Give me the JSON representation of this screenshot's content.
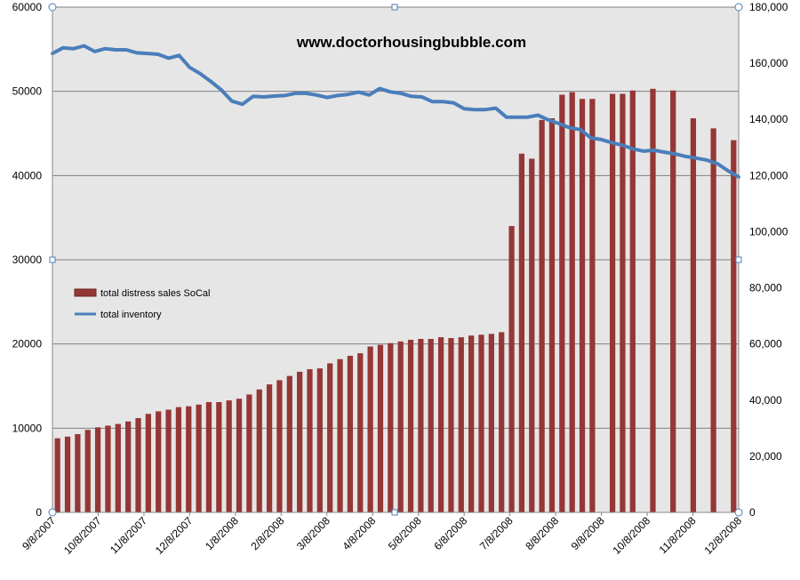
{
  "chart_data": {
    "type": "bar+line",
    "title": "www.doctorhousingbubble.com",
    "background_color": "#e6e6e6",
    "grid": true,
    "legend_position": "left-middle",
    "left_axis": {
      "ylim": [
        0,
        60000
      ],
      "ticks": [
        0,
        10000,
        20000,
        30000,
        40000,
        50000,
        60000
      ],
      "tick_labels": [
        "0",
        "10000",
        "20000",
        "30000",
        "40000",
        "50000",
        "60000"
      ]
    },
    "right_axis": {
      "ylim": [
        0,
        180000
      ],
      "ticks": [
        0,
        20000,
        40000,
        60000,
        80000,
        100000,
        120000,
        140000,
        160000,
        180000
      ],
      "tick_labels": [
        "0",
        "20,000",
        "40,000",
        "60,000",
        "80,000",
        "100,000",
        "120,000",
        "140,000",
        "160,000",
        "180,000"
      ]
    },
    "x_tick_labels": [
      "9/8/2007",
      "10/8/2007",
      "11/8/2007",
      "12/8/2007",
      "1/8/2008",
      "2/8/2008",
      "3/8/2008",
      "4/8/2008",
      "5/8/2008",
      "6/8/2008",
      "7/8/2008",
      "8/8/2008",
      "9/8/2008",
      "10/8/2008",
      "11/8/2008",
      "12/8/2008"
    ],
    "series": [
      {
        "name": "total distress sales SoCal",
        "type": "bar",
        "axis": "left",
        "color": "#953735",
        "values": [
          8800,
          9000,
          9300,
          9800,
          10100,
          10300,
          10500,
          10800,
          11200,
          11700,
          12000,
          12200,
          12500,
          12600,
          12800,
          13100,
          13100,
          13300,
          13500,
          14000,
          14600,
          15200,
          15700,
          16200,
          16700,
          17000,
          17100,
          17700,
          18200,
          18600,
          18900,
          19700,
          19900,
          20100,
          20300,
          20500,
          20600,
          20600,
          20800,
          20700,
          20800,
          21000,
          21100,
          21200,
          21400,
          34000,
          42600,
          42000,
          46600,
          46800,
          49600,
          49900,
          49100,
          49100,
          null,
          49700,
          49700,
          50100,
          null,
          50300,
          null,
          50100,
          null,
          46800,
          null,
          45600,
          null,
          44200
        ]
      },
      {
        "name": "total inventory",
        "type": "line",
        "axis": "right",
        "color": "#4a7ebb",
        "values": [
          163500,
          165500,
          165200,
          166200,
          164200,
          165200,
          164800,
          164800,
          163700,
          163500,
          163200,
          161800,
          162800,
          158500,
          156300,
          153500,
          150500,
          146500,
          145400,
          148200,
          148000,
          148300,
          148500,
          149300,
          149300,
          148700,
          147800,
          148500,
          148900,
          149700,
          148700,
          151000,
          149800,
          149300,
          148200,
          148000,
          146300,
          146300,
          145900,
          143800,
          143500,
          143500,
          144000,
          140800,
          140800,
          140800,
          141500,
          139800,
          138500,
          137000,
          136400,
          133400,
          132800,
          131700,
          130800,
          129500,
          128700,
          129000,
          128300,
          127700,
          126800,
          126200,
          125500,
          124200,
          121700,
          119500
        ]
      }
    ]
  }
}
